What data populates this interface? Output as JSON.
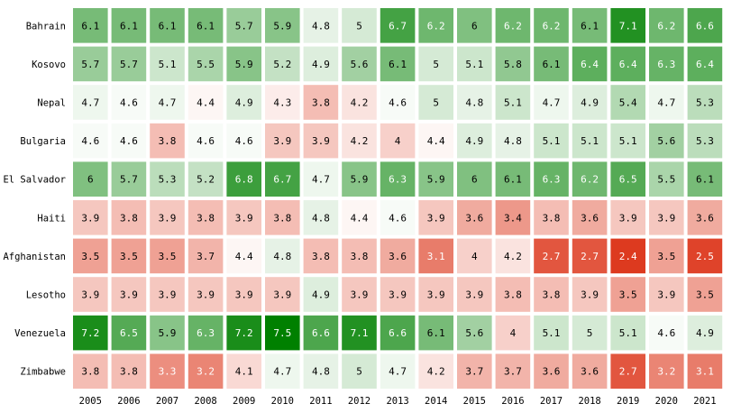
{
  "chart_data": {
    "type": "heatmap",
    "title": "",
    "xlabel": "",
    "ylabel": "",
    "x": [
      "2005",
      "2006",
      "2007",
      "2008",
      "2009",
      "2010",
      "2011",
      "2012",
      "2013",
      "2014",
      "2015",
      "2016",
      "2017",
      "2018",
      "2019",
      "2020",
      "2021"
    ],
    "y": [
      "Bahrain",
      "Kosovo",
      "Nepal",
      "Bulgaria",
      "El Salvador",
      "Haiti",
      "Afghanistan",
      "Lesotho",
      "Venezuela",
      "Zimbabwe"
    ],
    "values": [
      [
        6.1,
        6.1,
        6.1,
        6.1,
        5.7,
        5.9,
        4.8,
        5,
        6.7,
        6.2,
        6,
        6.2,
        6.2,
        6.1,
        7.1,
        6.2,
        6.6
      ],
      [
        5.7,
        5.7,
        5.1,
        5.5,
        5.9,
        5.2,
        4.9,
        5.6,
        6.1,
        5,
        5.1,
        5.8,
        6.1,
        6.4,
        6.4,
        6.3,
        6.4
      ],
      [
        4.7,
        4.6,
        4.7,
        4.4,
        4.9,
        4.3,
        3.8,
        4.2,
        4.6,
        5,
        4.8,
        5.1,
        4.7,
        4.9,
        5.4,
        4.7,
        5.3
      ],
      [
        4.6,
        4.6,
        3.8,
        4.6,
        4.6,
        3.9,
        3.9,
        4.2,
        4,
        4.4,
        4.9,
        4.8,
        5.1,
        5.1,
        5.1,
        5.6,
        5.3
      ],
      [
        6,
        5.7,
        5.3,
        5.2,
        6.8,
        6.7,
        4.7,
        5.9,
        6.3,
        5.9,
        6,
        6.1,
        6.3,
        6.2,
        6.5,
        5.5,
        6.1
      ],
      [
        3.9,
        3.8,
        3.9,
        3.8,
        3.9,
        3.8,
        4.8,
        4.4,
        4.6,
        3.9,
        3.6,
        3.4,
        3.8,
        3.6,
        3.9,
        3.9,
        3.6
      ],
      [
        3.5,
        3.5,
        3.5,
        3.7,
        4.4,
        4.8,
        3.8,
        3.8,
        3.6,
        3.1,
        4,
        4.2,
        2.7,
        2.7,
        2.4,
        3.5,
        2.5
      ],
      [
        3.9,
        3.9,
        3.9,
        3.9,
        3.9,
        3.9,
        4.9,
        3.9,
        3.9,
        3.9,
        3.9,
        3.8,
        3.8,
        3.9,
        3.5,
        3.9,
        3.5
      ],
      [
        7.2,
        6.5,
        5.9,
        6.3,
        7.2,
        7.5,
        6.6,
        7.1,
        6.6,
        6.1,
        5.6,
        4,
        5.1,
        5,
        5.1,
        4.6,
        4.9
      ],
      [
        3.8,
        3.8,
        3.3,
        3.2,
        4.1,
        4.7,
        4.8,
        5,
        4.7,
        4.2,
        3.7,
        3.7,
        3.6,
        3.6,
        2.7,
        3.2,
        3.1
      ]
    ],
    "colormap": {
      "low": "#dd3a1f",
      "mid": "#ffffff",
      "high": "#008000",
      "vmin": 2.4,
      "vcenter": 4.5,
      "vmax": 7.5
    },
    "grid": false,
    "legend": "none"
  }
}
